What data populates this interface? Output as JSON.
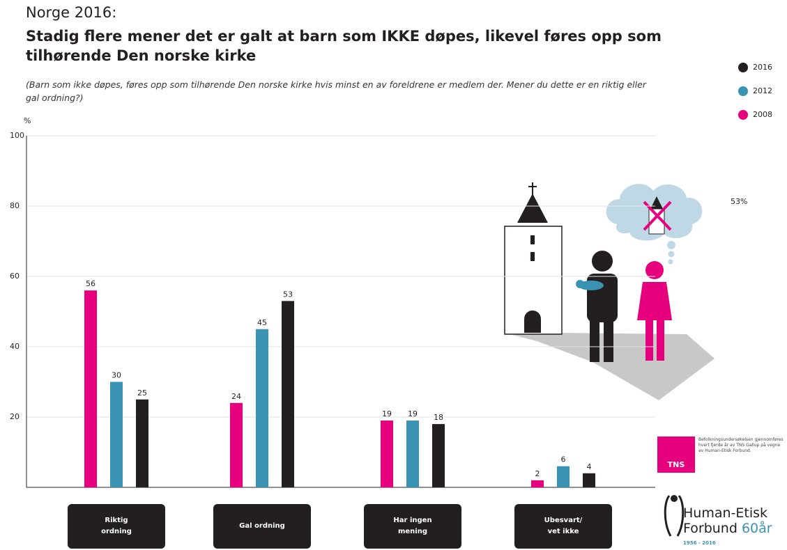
{
  "chart_data": {
    "type": "bar",
    "heading": "Norge 2016:",
    "title": "Stadig flere mener det er galt at barn som IKKE døpes, likevel føres opp som tilhørende Den norske kirke",
    "subtitle": "(Barn som ikke døpes, føres opp som tilhørende Den norske kirke hvis minst en av foreldrene er medlem der. Mener du dette er en riktig eller gal ordning?)",
    "y_label": "%",
    "categories": [
      "Riktig ordning",
      "Gal ordning",
      "Har ingen mening",
      "Ubesvart/ vet ikke"
    ],
    "series": [
      {
        "name": "2008",
        "color": "#e6007e",
        "values": [
          56,
          24,
          19,
          2
        ]
      },
      {
        "name": "2012",
        "color": "#3a93b3",
        "values": [
          30,
          45,
          19,
          6
        ]
      },
      {
        "name": "2016",
        "color": "#231f20",
        "values": [
          25,
          53,
          18,
          4
        ]
      }
    ],
    "legend_order": [
      2,
      1,
      0
    ],
    "ylim": [
      0,
      100
    ],
    "yticks": [
      20,
      40,
      60,
      80,
      100
    ],
    "grid": true,
    "annotation": "53%",
    "tns_logo": "TNS",
    "tns_note": "Befolkningsundersøkelsen gjennomføres hvert fjerde år av TNS Gallup på vegne av Human-Etisk Forbund.",
    "org_name": "Human-Etisk Forbund",
    "org_anniversary": "60år",
    "org_years": "1956 - 2016"
  }
}
